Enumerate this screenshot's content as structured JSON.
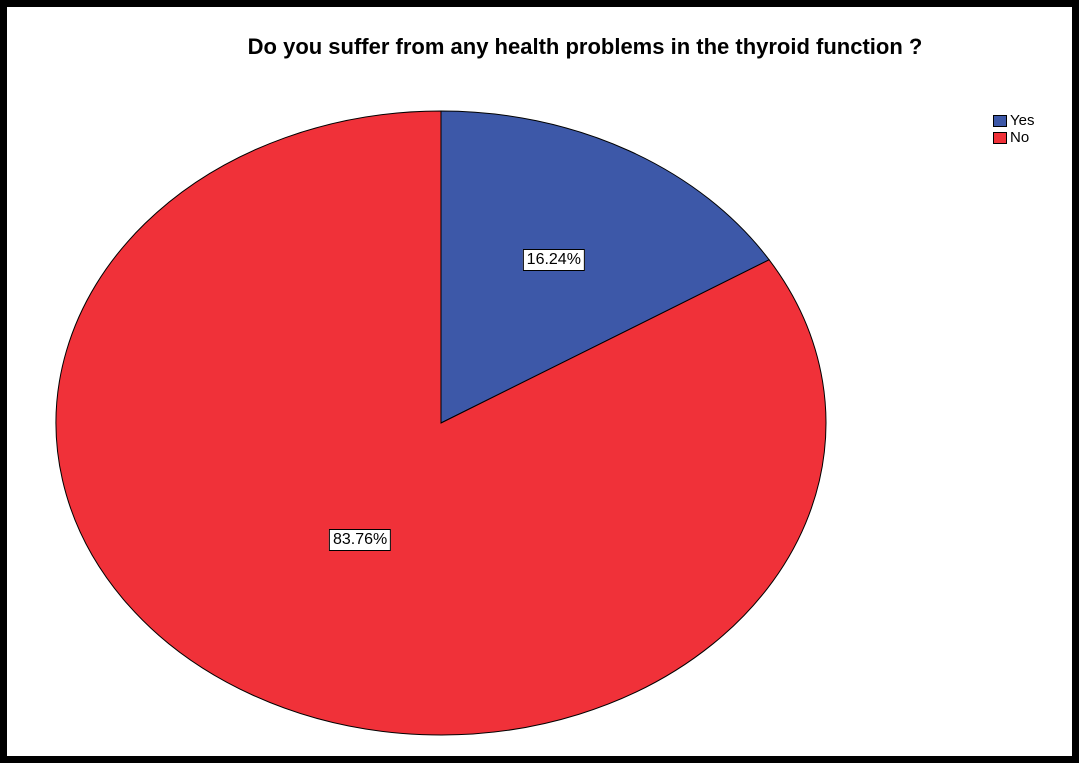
{
  "chart_data": {
    "type": "pie",
    "title": "Do you suffer from any health problems in the thyroid function ?",
    "categories": [
      "Yes",
      "No"
    ],
    "values": [
      16.24,
      83.76
    ],
    "labels": [
      "16.24%",
      "83.76%"
    ],
    "colors": [
      "#3d58a8",
      "#f03139"
    ],
    "start_angle_deg": 0,
    "direction": "clockwise",
    "legend": "top-right"
  }
}
